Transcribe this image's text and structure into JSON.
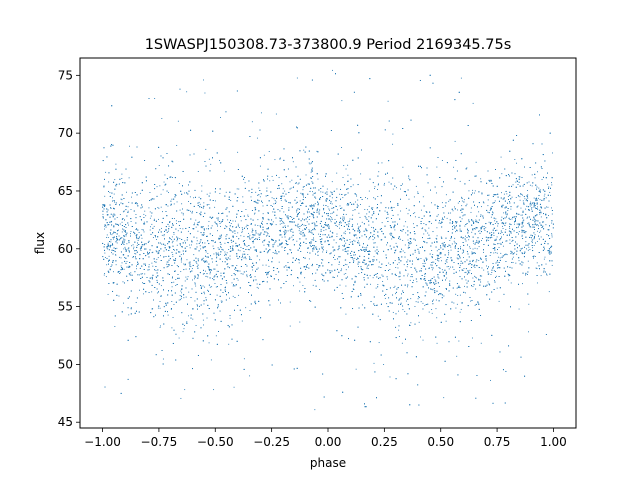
{
  "chart_data": {
    "type": "scatter",
    "title": "1SWASPJ150308.73-373800.9 Period 2169345.75s",
    "xlabel": "phase",
    "ylabel": "flux",
    "xlim": [
      -1.1,
      1.1
    ],
    "ylim": [
      44.5,
      76.5
    ],
    "xticks": [
      -1.0,
      -0.75,
      -0.5,
      -0.25,
      0.0,
      0.25,
      0.5,
      0.75,
      1.0
    ],
    "xtick_labels": [
      "−1.00",
      "−0.75",
      "−0.50",
      "−0.25",
      "0.00",
      "0.25",
      "0.50",
      "0.75",
      "1.00"
    ],
    "yticks": [
      45,
      50,
      55,
      60,
      65,
      70,
      75
    ],
    "ytick_labels": [
      "45",
      "50",
      "55",
      "60",
      "65",
      "70",
      "75"
    ],
    "grid": false,
    "legend": "none",
    "colors": {
      "points": "#1f77b4"
    },
    "series": [
      {
        "phase_range": [
          -1.0,
          1.0
        ],
        "flux_profile": [
          {
            "x": -1.0,
            "center": 61.5,
            "spread": 2.6
          },
          {
            "x": -0.9,
            "center": 60.8,
            "spread": 2.8
          },
          {
            "x": -0.75,
            "center": 60.0,
            "spread": 3.2
          },
          {
            "x": -0.6,
            "center": 59.5,
            "spread": 3.4
          },
          {
            "x": -0.5,
            "center": 59.2,
            "spread": 3.3
          },
          {
            "x": -0.35,
            "center": 60.3,
            "spread": 3.0
          },
          {
            "x": -0.2,
            "center": 61.8,
            "spread": 2.6
          },
          {
            "x": -0.05,
            "center": 62.5,
            "spread": 2.4
          },
          {
            "x": 0.0,
            "center": 61.5,
            "spread": 2.4
          },
          {
            "x": 0.1,
            "center": 60.8,
            "spread": 2.8
          },
          {
            "x": 0.25,
            "center": 60.0,
            "spread": 3.2
          },
          {
            "x": 0.4,
            "center": 59.5,
            "spread": 3.4
          },
          {
            "x": 0.5,
            "center": 59.2,
            "spread": 3.3
          },
          {
            "x": 0.65,
            "center": 60.3,
            "spread": 3.0
          },
          {
            "x": 0.8,
            "center": 61.8,
            "spread": 2.6
          },
          {
            "x": 0.95,
            "center": 62.5,
            "spread": 2.4
          },
          {
            "x": 1.0,
            "center": 61.5,
            "spread": 2.4
          }
        ]
      }
    ]
  }
}
